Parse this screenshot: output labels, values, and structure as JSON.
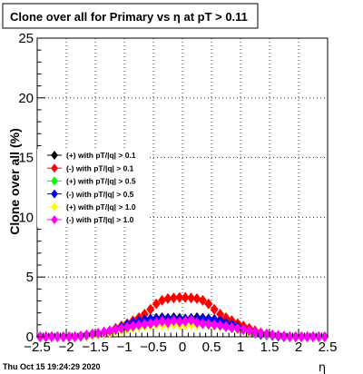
{
  "chart_data": {
    "type": "scatter",
    "title": "Clone  over all for Primary vs   η at pT > 0.11",
    "xlabel": "η",
    "ylabel": "Clone  over all (%)",
    "xlim": [
      -2.5,
      2.5
    ],
    "ylim": [
      0,
      25
    ],
    "x_ticks": [
      "−2.5",
      "−2",
      "−1.5",
      "−1",
      "−0.5",
      "0",
      "0.5",
      "1",
      "1.5",
      "2",
      "2.5"
    ],
    "y_ticks": [
      "0",
      "5",
      "10",
      "15",
      "20",
      "25"
    ],
    "grid": true,
    "legend_position": "left-middle",
    "timestamp": "Thu Oct 15 19:24:29 2020",
    "x": [
      -2.45,
      -2.35,
      -2.25,
      -2.15,
      -2.05,
      -1.95,
      -1.85,
      -1.75,
      -1.65,
      -1.55,
      -1.45,
      -1.35,
      -1.25,
      -1.15,
      -1.05,
      -0.95,
      -0.85,
      -0.75,
      -0.65,
      -0.55,
      -0.45,
      -0.35,
      -0.25,
      -0.15,
      -0.05,
      0.05,
      0.15,
      0.25,
      0.35,
      0.45,
      0.55,
      0.65,
      0.75,
      0.85,
      0.95,
      1.05,
      1.15,
      1.25,
      1.35,
      1.45,
      1.55,
      1.65,
      1.75,
      1.85,
      1.95,
      2.05,
      2.15,
      2.25,
      2.35,
      2.45
    ],
    "series": [
      {
        "name": "(+) with pT/|q| > 0.1",
        "color": "#000000",
        "values": [
          0,
          0,
          0,
          0,
          0,
          0,
          0,
          0.05,
          0.1,
          0.15,
          0.2,
          0.3,
          0.45,
          0.6,
          0.8,
          1.0,
          1.2,
          1.35,
          1.45,
          1.5,
          1.55,
          1.6,
          1.55,
          1.6,
          1.55,
          1.5,
          1.55,
          1.6,
          1.55,
          1.5,
          1.45,
          1.4,
          1.3,
          1.2,
          1.0,
          0.8,
          0.6,
          0.45,
          0.3,
          0.2,
          0.15,
          0.1,
          0.05,
          0,
          0,
          0,
          0,
          0,
          0,
          0
        ]
      },
      {
        "name": "(-) with pT/|q| > 0.1",
        "color": "#ff0000",
        "values": [
          0,
          0,
          0,
          0,
          0,
          0,
          0,
          0.05,
          0.1,
          0.15,
          0.2,
          0.35,
          0.5,
          0.7,
          0.9,
          1.1,
          1.35,
          1.6,
          1.9,
          2.3,
          2.75,
          3.05,
          3.2,
          3.25,
          3.3,
          3.3,
          3.25,
          3.2,
          3.05,
          2.75,
          2.3,
          1.9,
          1.6,
          1.35,
          1.1,
          0.9,
          0.7,
          0.5,
          0.35,
          0.2,
          0.15,
          0.1,
          0.05,
          0,
          0,
          0,
          0,
          0,
          0,
          0
        ]
      },
      {
        "name": "(+) with pT/|q| > 0.5",
        "color": "#00ff00",
        "values": [
          0,
          0,
          0,
          0,
          0,
          0,
          0,
          0.05,
          0.1,
          0.15,
          0.2,
          0.3,
          0.4,
          0.55,
          0.7,
          0.85,
          0.95,
          1.05,
          1.1,
          1.15,
          1.2,
          1.25,
          1.2,
          1.25,
          1.2,
          1.2,
          1.25,
          1.2,
          1.2,
          1.15,
          1.1,
          1.05,
          0.95,
          0.85,
          0.7,
          0.55,
          0.4,
          0.3,
          0.2,
          0.15,
          0.1,
          0.05,
          0,
          0,
          0,
          0,
          0,
          0,
          0,
          0
        ]
      },
      {
        "name": "(-) with pT/|q| > 0.5",
        "color": "#0000ff",
        "values": [
          0,
          0,
          0,
          0,
          0,
          0,
          0,
          0.05,
          0.1,
          0.15,
          0.2,
          0.3,
          0.45,
          0.6,
          0.8,
          1.0,
          1.15,
          1.3,
          1.4,
          1.45,
          1.5,
          1.5,
          1.45,
          1.5,
          1.45,
          1.45,
          1.5,
          1.45,
          1.5,
          1.45,
          1.4,
          1.3,
          1.15,
          1.0,
          0.8,
          0.6,
          0.45,
          0.3,
          0.2,
          0.15,
          0.1,
          0.05,
          0,
          0,
          0,
          0,
          0,
          0,
          0,
          0
        ]
      },
      {
        "name": "(+) with pT/|q| > 1.0",
        "color": "#ffff00",
        "values": [
          0,
          0,
          0,
          0,
          0,
          0,
          0,
          0.05,
          0.1,
          0.15,
          0.2,
          0.3,
          0.35,
          0.45,
          0.55,
          0.65,
          0.75,
          0.85,
          0.9,
          0.95,
          1.0,
          1.05,
          1.0,
          1.05,
          1.0,
          1.0,
          1.05,
          1.0,
          1.05,
          1.0,
          0.95,
          0.9,
          0.85,
          0.75,
          0.65,
          0.55,
          0.45,
          0.35,
          0.3,
          0.2,
          0.15,
          0.1,
          0.05,
          0,
          0,
          0,
          0,
          0,
          0,
          0
        ]
      },
      {
        "name": "(-) with pT/|q| > 1.0",
        "color": "#ff00ff",
        "values": [
          0,
          0,
          0,
          0,
          0,
          0,
          0,
          0.05,
          0.15,
          0.25,
          0.3,
          0.4,
          0.5,
          0.6,
          0.7,
          0.8,
          0.9,
          1.0,
          1.05,
          1.1,
          1.2,
          1.3,
          1.2,
          1.35,
          1.25,
          1.3,
          1.4,
          1.2,
          1.1,
          1.05,
          1.0,
          0.95,
          0.85,
          0.75,
          0.7,
          0.6,
          0.5,
          0.4,
          0.3,
          0.25,
          0.15,
          0.1,
          0.05,
          0,
          0,
          0,
          0,
          0,
          0,
          0
        ]
      }
    ]
  }
}
